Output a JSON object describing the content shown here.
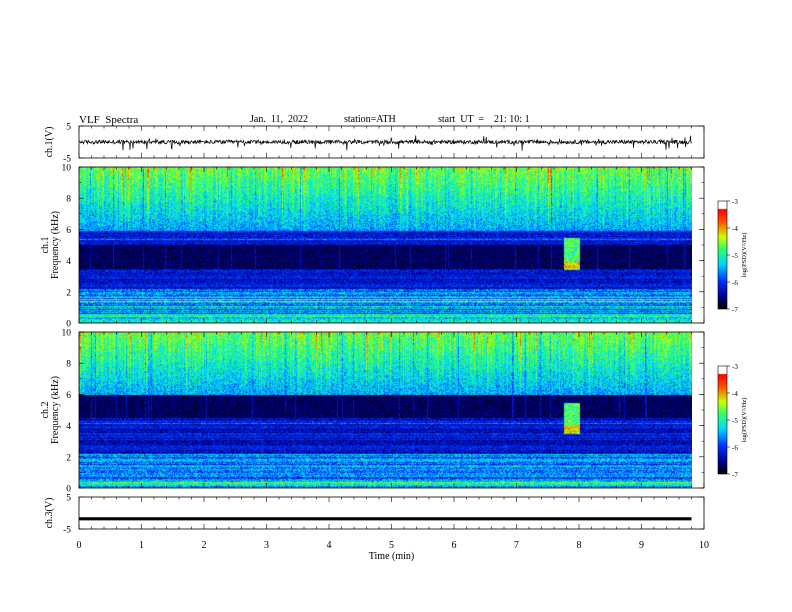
{
  "header": {
    "title": "VLF  Spectra",
    "date": "Jan.  11,  2022",
    "station": "station=ATH",
    "start": "start  UT  =    21: 10: 1"
  },
  "chart_data": [
    {
      "type": "line",
      "panel": "ch1",
      "ylabel": "ch.1(V)",
      "ylim": [
        -5,
        5
      ],
      "yticks": [
        "5",
        "-5"
      ],
      "xlim": [
        0,
        10
      ],
      "x_end": 9.8,
      "baseline": 0,
      "noise_amplitude": 1
    },
    {
      "type": "heatmap",
      "panel": "spec1",
      "ylabel": "ch.1\nFrequency (kHz)",
      "ylim": [
        0,
        10
      ],
      "yticks": [
        "0",
        "2",
        "4",
        "6",
        "8",
        "10"
      ],
      "xlim": [
        0,
        10
      ],
      "x_end": 9.8,
      "colorbar": {
        "label": "log(PSD)(V²/Hz)",
        "range": [
          -7,
          -3
        ],
        "ticks": [
          "-3",
          "-4",
          "-5",
          "-6",
          "-7"
        ]
      },
      "features": {
        "dark_band_khz": [
          3.5,
          5.0
        ],
        "burst_min": [
          7.75,
          8.0
        ],
        "burst_khz": [
          3.4,
          5.5
        ]
      }
    },
    {
      "type": "heatmap",
      "panel": "spec2",
      "ylabel": "ch.2\nFrequency (kHz)",
      "ylim": [
        0,
        10
      ],
      "yticks": [
        "0",
        "2",
        "4",
        "6",
        "8",
        "10"
      ],
      "xlim": [
        0,
        10
      ],
      "x_end": 9.8,
      "colorbar": {
        "label": "log(PSD)(V²/Hz)",
        "range": [
          -7,
          -3
        ],
        "ticks": [
          "-3",
          "-4",
          "-5",
          "-6",
          "-7"
        ]
      },
      "features": {
        "dark_band_khz": [
          4.5,
          6.0
        ],
        "burst_min": [
          7.75,
          8.0
        ],
        "burst_khz": [
          3.5,
          5.5
        ]
      }
    },
    {
      "type": "line",
      "panel": "ch3",
      "ylabel": "ch.3(V)",
      "ylim": [
        -5,
        5
      ],
      "yticks": [
        "5",
        "-5"
      ],
      "xlim": [
        0,
        10
      ],
      "x_end": 9.8,
      "baseline": -1.8,
      "noise_amplitude": 0
    }
  ],
  "xaxis": {
    "label": "Time  (min)",
    "ticks": [
      "0",
      "1",
      "2",
      "3",
      "4",
      "5",
      "6",
      "7",
      "8",
      "9",
      "10"
    ]
  }
}
